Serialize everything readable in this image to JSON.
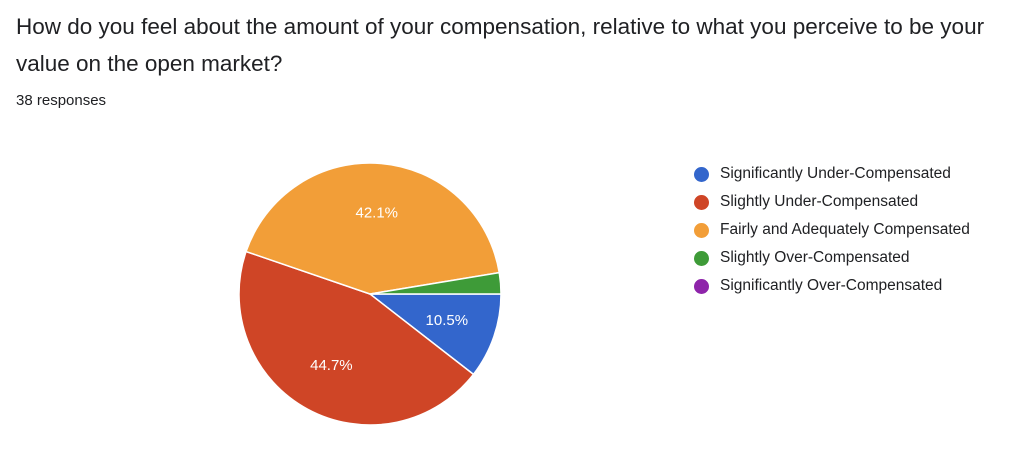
{
  "question": {
    "title": "How do you feel about the amount of your compensation, relative to what you perceive to be your value on the open market?",
    "response_count": "38 responses"
  },
  "chart_data": {
    "type": "pie",
    "title": "",
    "slices": [
      {
        "label": "Significantly Under-Compensated",
        "percent": 10.5,
        "count": 4,
        "color": "#3366cc",
        "data_label": "10.5%"
      },
      {
        "label": "Slightly Under-Compensated",
        "percent": 44.7,
        "count": 17,
        "color": "#cf4526",
        "data_label": "44.7%"
      },
      {
        "label": "Fairly and Adequately Compensated",
        "percent": 42.1,
        "count": 16,
        "color": "#f29e38",
        "data_label": "42.1%"
      },
      {
        "label": "Slightly Over-Compensated",
        "percent": 2.6,
        "count": 1,
        "color": "#3e9b38",
        "data_label": ""
      },
      {
        "label": "Significantly Over-Compensated",
        "percent": 0,
        "count": 0,
        "color": "#8e24aa",
        "data_label": ""
      }
    ],
    "legend_position": "right"
  }
}
